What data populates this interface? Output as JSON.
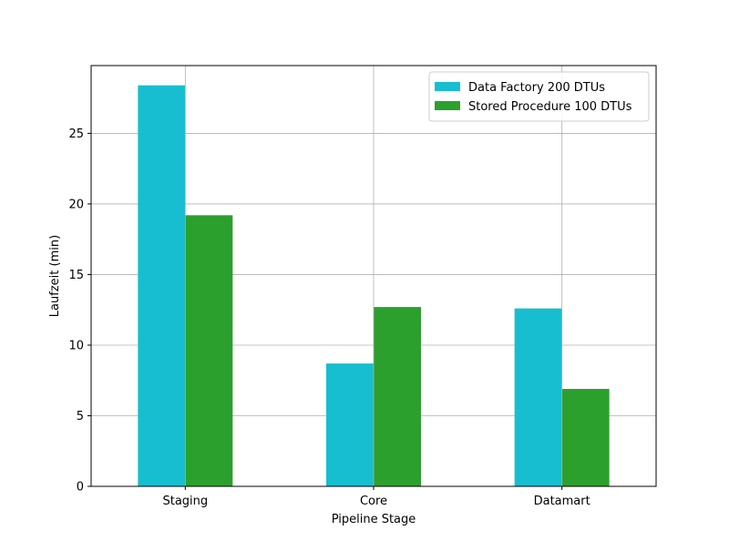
{
  "chart_data": {
    "type": "bar",
    "categories": [
      "Staging",
      "Core",
      "Datamart"
    ],
    "series": [
      {
        "name": "Data Factory 200 DTUs",
        "color": "#17becf",
        "values": [
          28.4,
          8.7,
          12.6
        ]
      },
      {
        "name": "Stored Procedure 100 DTUs",
        "color": "#2ca02c",
        "values": [
          19.2,
          12.7,
          6.9
        ]
      }
    ],
    "title": "",
    "xlabel": "Pipeline Stage",
    "ylabel": "Laufzeit (min)",
    "ylim": [
      0,
      29.8
    ],
    "yticks": [
      0,
      5,
      10,
      15,
      20,
      25
    ],
    "grid": true,
    "legend_position": "upper-right"
  }
}
